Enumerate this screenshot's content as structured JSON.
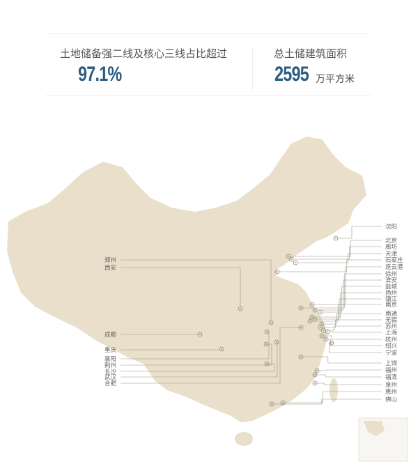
{
  "stats": {
    "left": {
      "label": "土地储备强二线及核心三线占比超过",
      "value": "97.1%"
    },
    "right": {
      "label": "总土储建筑面积",
      "value": "2595",
      "unit": "万平方米"
    }
  },
  "colors": {
    "accent": "#2c5d80",
    "map_fill": "#e9dfca",
    "line": "#9a9488"
  },
  "map": {
    "right_cities": [
      "沈阳",
      "北京",
      "廊坊",
      "天津",
      "石家庄",
      "连云港",
      "徐州",
      "淮安",
      "盐城",
      "扬州",
      "镇江",
      "南京",
      "南通",
      "无锡",
      "苏州",
      "上海",
      "杭州",
      "绍兴",
      "宁波",
      "上饶",
      "福州",
      "福清",
      "泉州",
      "惠州",
      "佛山"
    ],
    "left_cities": [
      "郑州",
      "西安",
      "成都",
      "重庆",
      "襄阳",
      "荆州",
      "长沙",
      "武汉",
      "合肥"
    ]
  }
}
